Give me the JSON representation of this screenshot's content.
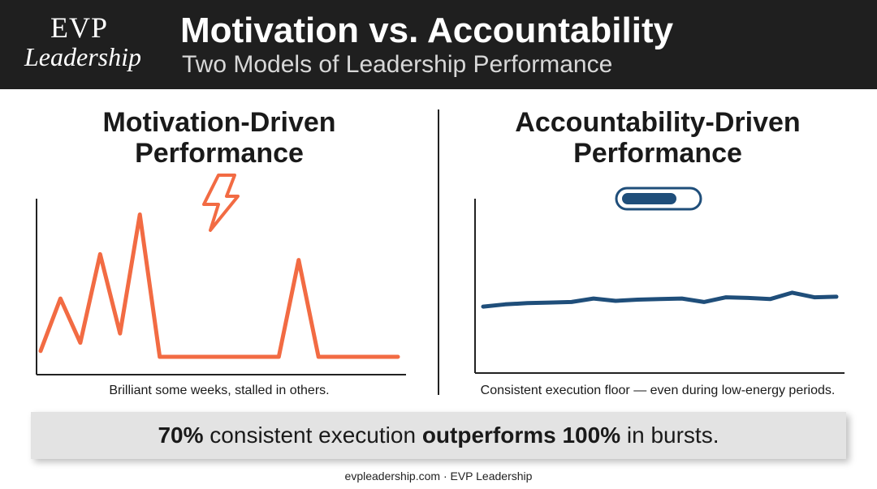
{
  "header": {
    "logo_top": "EVP",
    "logo_bottom": "Leadership",
    "title": "Motivation vs. Accountability",
    "subtitle": "Two Models of Leadership Performance"
  },
  "left_panel": {
    "title_line1": "Motivation-Driven",
    "title_line2": "Performance",
    "icon": "lightning-bolt-icon",
    "caption": "Brilliant some weeks, stalled in others."
  },
  "right_panel": {
    "title_line1": "Accountability-Driven",
    "title_line2": "Performance",
    "icon": "battery-icon",
    "caption": "Consistent execution floor — even during low-energy periods."
  },
  "banner": {
    "part1": "70%",
    "part2": " consistent execution ",
    "part3": "outperforms 100%",
    "part4": " in bursts."
  },
  "footer": "evpleadership.com · EVP Leadership",
  "colors": {
    "header_bg": "#1f1f1f",
    "motivation_line": "#f26b43",
    "accountability_line": "#1f4e7a"
  },
  "chart_data": [
    {
      "type": "line",
      "name": "motivation",
      "x": [
        0,
        1,
        2,
        3,
        4,
        5,
        6,
        7,
        8,
        9,
        10,
        11,
        12,
        13,
        14,
        15,
        16,
        17,
        18
      ],
      "values": [
        5,
        50,
        12,
        88,
        20,
        122,
        0,
        0,
        0,
        0,
        0,
        0,
        0,
        83,
        0,
        0,
        0,
        0,
        0
      ],
      "xlim": [
        0,
        18
      ],
      "ylim": [
        0,
        130
      ],
      "grid": false
    },
    {
      "type": "line",
      "name": "accountability",
      "x": [
        0,
        1,
        2,
        3,
        4,
        5,
        6,
        7,
        8,
        9,
        10,
        11,
        12,
        13,
        14,
        15,
        16
      ],
      "values": [
        43,
        45,
        46,
        46.5,
        47,
        50,
        48,
        49,
        49.5,
        50,
        47,
        51,
        50.5,
        49.5,
        55,
        51,
        51.5
      ],
      "xlim": [
        0,
        16
      ],
      "ylim": [
        0,
        130
      ],
      "grid": false
    }
  ]
}
